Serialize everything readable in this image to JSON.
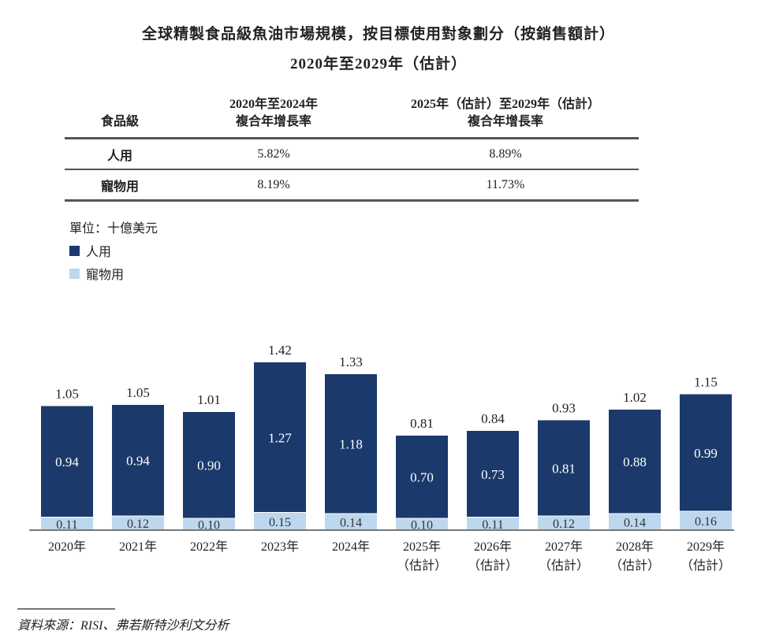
{
  "title_line1": "全球精製食品級魚油市場規模，按目標使用對象劃分（按銷售額計）",
  "title_line2": "2020年至2029年（估計）",
  "cagr_table": {
    "headers": [
      "食品級",
      "2020年至2024年\n複合年增長率",
      "2025年（估計）至2029年（估計）\n複合年增長率"
    ],
    "header_col1_line1": "2020年至2024年",
    "header_col1_line2": "複合年增長率",
    "header_col2_line1": "2025年（估計）至2029年（估計）",
    "header_col2_line2": "複合年增長率",
    "rows": [
      {
        "category": "人用",
        "cagr_2020_2024": "5.82%",
        "cagr_2025_2029": "8.89%"
      },
      {
        "category": "寵物用",
        "cagr_2020_2024": "8.19%",
        "cagr_2025_2029": "11.73%"
      }
    ]
  },
  "chart_data": {
    "type": "bar",
    "stacked": true,
    "unit_label": "單位：十億美元",
    "categories": [
      "2020年",
      "2021年",
      "2022年",
      "2023年",
      "2024年",
      "2025年\n（估計）",
      "2026年\n（估計）",
      "2027年\n（估計）",
      "2028年\n（估計）",
      "2029年\n（估計）"
    ],
    "category_years": [
      "2020年",
      "2021年",
      "2022年",
      "2023年",
      "2024年",
      "2025年",
      "2026年",
      "2027年",
      "2028年",
      "2029年"
    ],
    "estimate_suffix": "（估計）",
    "estimated_from_index": 5,
    "series": [
      {
        "name": "寵物用",
        "color": "#bdd7ee",
        "values": [
          0.11,
          0.12,
          0.1,
          0.15,
          0.14,
          0.1,
          0.11,
          0.12,
          0.14,
          0.16
        ]
      },
      {
        "name": "人用",
        "color": "#1b3a6b",
        "values": [
          0.94,
          0.94,
          0.9,
          1.27,
          1.18,
          0.7,
          0.73,
          0.81,
          0.88,
          0.99
        ]
      }
    ],
    "totals": [
      1.05,
      1.05,
      1.01,
      1.42,
      1.33,
      0.81,
      0.84,
      0.93,
      1.02,
      1.15
    ],
    "legend": [
      "人用",
      "寵物用"
    ],
    "legend_placement": "top-left",
    "grid": false,
    "ylim": [
      0,
      1.5
    ]
  },
  "source": "資料來源：RISI、弗若斯特沙利文分析"
}
